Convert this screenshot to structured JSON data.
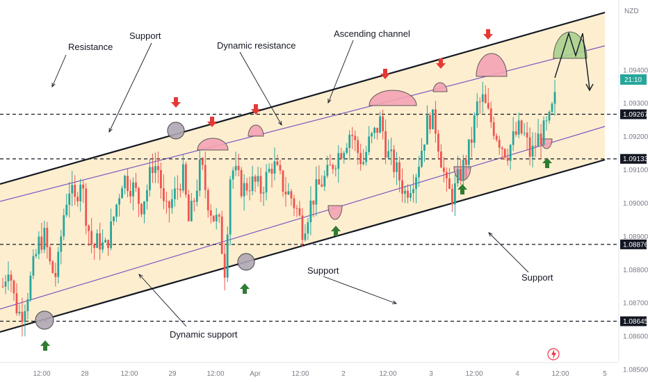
{
  "chart_data": {
    "type": "candlestick",
    "currency": "NZD",
    "ylim": [
      1.085,
      1.096
    ],
    "y_ticks": [
      "1.09400",
      "1.09300",
      "1.09200",
      "1.09100",
      "1.09000",
      "1.08900",
      "1.08800",
      "1.08700",
      "1.08600",
      "1.08500"
    ],
    "x_ticks": [
      "12:00",
      "28",
      "12:00",
      "29",
      "12:00",
      "Apr",
      "12:00",
      "2",
      "12:00",
      "3",
      "12:00",
      "4",
      "12:00",
      "5"
    ],
    "levels": [
      {
        "label": "1.09267",
        "value": 1.09267
      },
      {
        "label": "1.09133",
        "value": 1.09133
      },
      {
        "label": "1.08876",
        "value": 1.08876
      },
      {
        "label": "1.08645",
        "value": 1.08645
      }
    ],
    "current_price": {
      "value": 1.0931,
      "countdown": "21:10"
    },
    "candles_seed": [
      1.0875,
      1.0882,
      1.087,
      1.0866,
      1.0872,
      1.088,
      1.0888,
      1.089,
      1.088,
      1.0878,
      1.0895,
      1.0905,
      1.09,
      1.0908,
      1.0895,
      1.0886,
      1.0889,
      1.0886,
      1.0892,
      1.09,
      1.0908,
      1.0906,
      1.0904,
      1.0899,
      1.0904,
      1.0912,
      1.091,
      1.0896,
      1.09,
      1.0904,
      1.0909,
      1.0894,
      1.0902,
      1.0912,
      1.0902,
      1.0896,
      1.0894,
      1.088,
      1.0911,
      1.0908,
      1.0904,
      1.0906,
      1.0906,
      1.0904,
      1.0908,
      1.0912,
      1.0908,
      1.0904,
      1.0902,
      1.0898,
      1.0892,
      1.0898,
      1.0903,
      1.0906,
      1.0908,
      1.0912,
      1.0915,
      1.0918,
      1.0922,
      1.0916,
      1.0912,
      1.0918,
      1.0921,
      1.0925,
      1.0915,
      1.0912,
      1.0908,
      1.0903,
      1.0906,
      1.091,
      1.0918,
      1.0926,
      1.0924,
      1.0914,
      1.0904,
      1.0902,
      1.0908,
      1.0912,
      1.0918,
      1.0929,
      1.0931,
      1.0926,
      1.0922,
      1.0918,
      1.0915,
      1.0919,
      1.0922,
      1.092,
      1.0914,
      1.0919,
      1.0921,
      1.0924,
      1.0931
    ],
    "channel": {
      "upper": [
        [
          1.09,
          1.0938
        ]
      ],
      "lower": [
        [
          1.0848,
          1.0908
        ]
      ]
    },
    "annotations": [
      {
        "text": "Resistance"
      },
      {
        "text": "Support"
      },
      {
        "text": "Dynamic resistance"
      },
      {
        "text": "Ascending channel"
      },
      {
        "text": "Support"
      },
      {
        "text": "Support"
      },
      {
        "text": "Dynamic support"
      }
    ]
  },
  "icons": {
    "signal": "lightning-icon"
  },
  "colors": {
    "bull": "#26a69a",
    "bear": "#ef5350",
    "channel_fill": "#fdebc7",
    "channel_line": "#131722",
    "dynamic_line": "#7e57c2",
    "arrow_up": "#2e7d32",
    "arrow_down": "#e53935",
    "circle_fill": "#b0a8b4",
    "dome_red": "#f4a3b5",
    "dome_green": "#a9d18e"
  }
}
